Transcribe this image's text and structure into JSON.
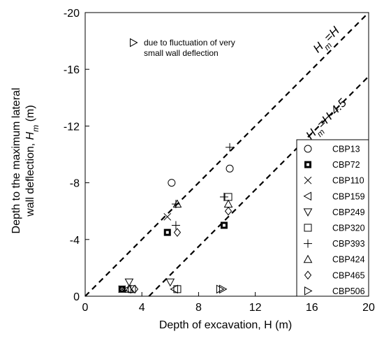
{
  "chart_data": {
    "type": "scatter",
    "xlabel": "Depth of excavation, H (m)",
    "ylabel": "Depth to the maximum lateral wall deflection, Hm (m)",
    "xlim": [
      0,
      20
    ],
    "ylim": [
      0,
      -20
    ],
    "y_inverted": true,
    "x_ticks": [
      "0",
      "4",
      "8",
      "12",
      "16",
      "20"
    ],
    "y_ticks": [
      "0",
      "-4",
      "-8",
      "-12",
      "-16",
      "-20"
    ],
    "grid": false,
    "legend_position": "bottom-right",
    "note": {
      "marker": "triangle-right",
      "text_line1": "due to fluctuation of very",
      "text_line2": "small wall deflection"
    },
    "reference_lines": [
      {
        "name": "Hm=H",
        "style": "dashed",
        "x": [
          0,
          20
        ],
        "y": [
          0,
          -20
        ]
      },
      {
        "name": "Hm=H-4.5",
        "style": "dashed",
        "x": [
          4.5,
          20
        ],
        "y": [
          0,
          -15.5
        ]
      }
    ],
    "series": [
      {
        "name": "CBP13",
        "marker": "circle",
        "points": [
          [
            6.1,
            -8.0
          ],
          [
            10.2,
            -9.0
          ]
        ]
      },
      {
        "name": "CBP72",
        "marker": "bold-square",
        "points": [
          [
            2.6,
            -0.5
          ],
          [
            5.8,
            -4.5
          ],
          [
            9.8,
            -5.0
          ]
        ]
      },
      {
        "name": "CBP110",
        "marker": "x",
        "points": [
          [
            5.8,
            -5.6
          ],
          [
            2.6,
            -0.5
          ]
        ]
      },
      {
        "name": "CBP159",
        "marker": "triangle-left",
        "points": [
          [
            6.3,
            -0.5
          ],
          [
            3.0,
            -0.5
          ]
        ]
      },
      {
        "name": "CBP249",
        "marker": "triangle-down",
        "points": [
          [
            3.1,
            -1.0
          ],
          [
            6.0,
            -1.0
          ]
        ]
      },
      {
        "name": "CBP320",
        "marker": "square",
        "points": [
          [
            6.5,
            -0.5
          ],
          [
            10.1,
            -7.0
          ],
          [
            3.3,
            -0.5
          ]
        ]
      },
      {
        "name": "CBP393",
        "marker": "plus",
        "points": [
          [
            10.2,
            -10.5
          ],
          [
            9.8,
            -7.0
          ],
          [
            6.4,
            -5.0
          ],
          [
            6.4,
            -6.5
          ]
        ]
      },
      {
        "name": "CBP424",
        "marker": "triangle-up",
        "points": [
          [
            10.1,
            -6.5
          ],
          [
            6.5,
            -6.5
          ],
          [
            3.1,
            -0.5
          ]
        ]
      },
      {
        "name": "CBP465",
        "marker": "diamond",
        "points": [
          [
            10.1,
            -6.0
          ],
          [
            6.5,
            -4.5
          ],
          [
            3.5,
            -0.5
          ]
        ]
      },
      {
        "name": "CBP506",
        "marker": "triangle-right",
        "points": [
          [
            9.7,
            -0.5
          ],
          [
            9.5,
            -0.5
          ]
        ]
      }
    ]
  }
}
